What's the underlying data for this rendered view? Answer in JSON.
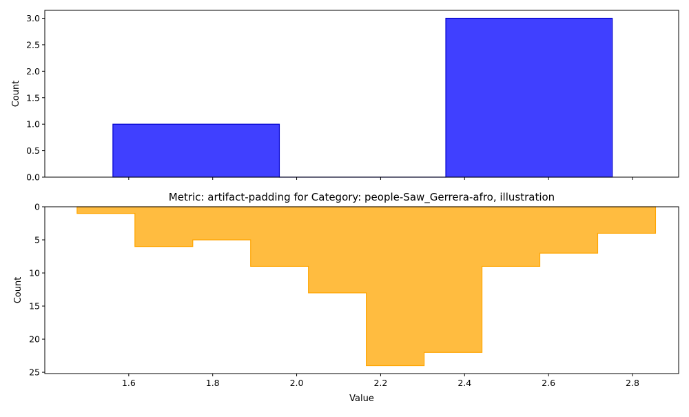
{
  "chart_data": [
    {
      "type": "bar",
      "title": "",
      "xlabel": "",
      "ylabel": "Count",
      "xlim": [
        1.4,
        2.91
      ],
      "ylim": [
        0,
        3.15
      ],
      "yticks": [
        0.0,
        0.5,
        1.0,
        1.5,
        2.0,
        2.5,
        3.0
      ],
      "ytick_labels": [
        "0.0",
        "0.5",
        "1.0",
        "1.5",
        "2.0",
        "2.5",
        "3.0"
      ],
      "bins": [
        {
          "start": 1.5623,
          "end": 1.9588,
          "value": 1
        },
        {
          "start": 1.9588,
          "end": 2.3553,
          "value": 0
        },
        {
          "start": 2.3553,
          "end": 2.7518,
          "value": 3
        }
      ],
      "colors": {
        "face": "#0000ff",
        "edge": "#0000cc"
      },
      "opacity": 0.75,
      "grid": false
    },
    {
      "type": "area",
      "title": "Metric: artifact-padding for Category: people-Saw_Gerrera-afro, illustration",
      "xlabel": "Value",
      "ylabel": "Count",
      "xlim": [
        1.4,
        2.91
      ],
      "ylim": [
        0,
        25.2
      ],
      "y_inverted": true,
      "xticks": [
        1.6,
        1.8,
        2.0,
        2.2,
        2.4,
        2.6,
        2.8
      ],
      "xtick_labels": [
        "1.6",
        "1.8",
        "2.0",
        "2.2",
        "2.4",
        "2.6",
        "2.8"
      ],
      "yticks": [
        0,
        5,
        10,
        15,
        20,
        25
      ],
      "ytick_labels": [
        "0",
        "5",
        "10",
        "15",
        "20",
        "25"
      ],
      "bin_edges": [
        1.4769,
        1.6147,
        1.7525,
        1.8903,
        2.0281,
        2.1659,
        2.3037,
        2.4415,
        2.5793,
        2.7171,
        2.8549
      ],
      "counts": [
        1,
        6,
        5,
        9,
        13,
        24,
        22,
        9,
        7,
        4
      ],
      "colors": {
        "face": "#ffa500",
        "edge": "#ffa500"
      },
      "opacity": 0.75,
      "grid": false
    }
  ]
}
